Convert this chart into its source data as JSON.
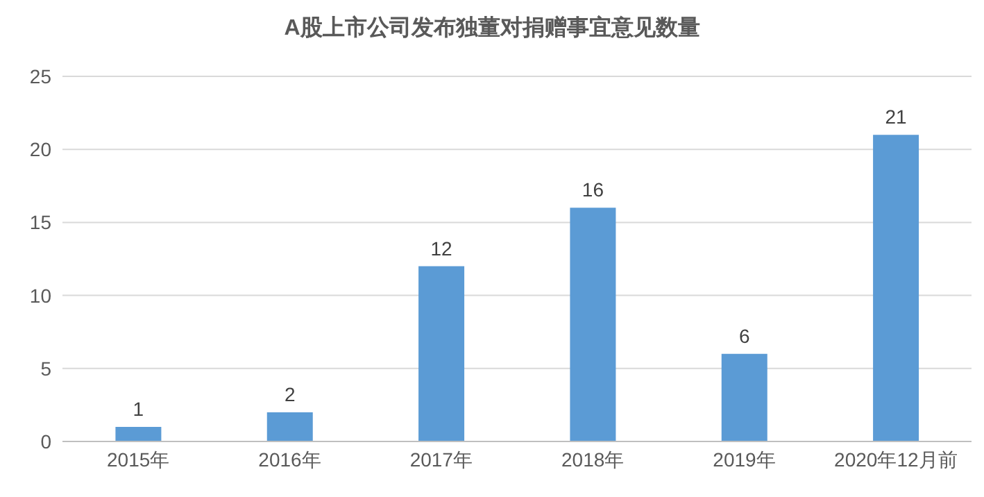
{
  "chart_data": {
    "type": "bar",
    "title": "A股上市公司发布独董对捐赠事宜意见数量",
    "categories": [
      "2015年",
      "2016年",
      "2017年",
      "2018年",
      "2019年",
      "2020年12月前"
    ],
    "values": [
      1,
      2,
      12,
      16,
      6,
      21
    ],
    "color": "#5b9bd5",
    "ylim": [
      0,
      25
    ],
    "yticks": [
      0,
      5,
      10,
      15,
      20,
      25
    ],
    "grid": "y",
    "data_labels": true
  }
}
